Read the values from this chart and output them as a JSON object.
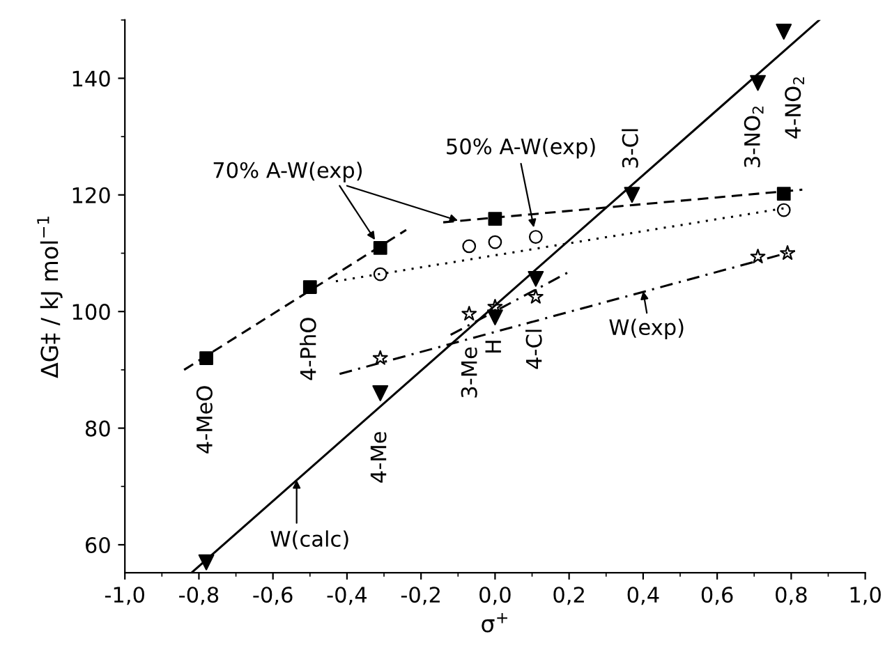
{
  "chart_data": {
    "type": "scatter",
    "xlabel": "σ$^{+}$",
    "ylabel": "ΔG‡ / kJ mol$^{−1}$",
    "xlim": [
      -1.0,
      1.0
    ],
    "ylim": [
      55.2,
      150
    ],
    "xticks": [
      {
        "value": -1.0,
        "label": "-1,0"
      },
      {
        "value": -0.8,
        "label": "-0,8"
      },
      {
        "value": -0.6,
        "label": "-0,6"
      },
      {
        "value": -0.4,
        "label": "-0,4"
      },
      {
        "value": -0.2,
        "label": "-0,2"
      },
      {
        "value": 0.0,
        "label": "0,0"
      },
      {
        "value": 0.2,
        "label": "0,2"
      },
      {
        "value": 0.4,
        "label": "0,4"
      },
      {
        "value": 0.6,
        "label": "0,6"
      },
      {
        "value": 0.8,
        "label": "0,8"
      },
      {
        "value": 1.0,
        "label": "1,0"
      }
    ],
    "yticks": [
      60,
      80,
      100,
      120,
      140
    ],
    "grid": false,
    "legend": false,
    "series": [
      {
        "marker": "triangle",
        "color": "#000000",
        "x": [
          -0.78,
          -0.31,
          0.0,
          0.11,
          0.37,
          0.71,
          0.78
        ],
        "values": [
          57,
          86,
          99,
          105.6,
          120,
          139.2,
          148
        ]
      },
      {
        "marker": "square",
        "color": "#000000",
        "x": [
          -0.78,
          -0.5,
          -0.31,
          0.0,
          0.78
        ],
        "values": [
          92,
          104.2,
          110.9,
          115.9,
          120.2
        ]
      },
      {
        "marker": "circle",
        "color": "#000000",
        "x": [
          -0.31,
          -0.07,
          0.0,
          0.11,
          0.78
        ],
        "values": [
          106.4,
          111.2,
          111.9,
          112.8,
          117.4
        ]
      },
      {
        "marker": "star",
        "color": "#000000",
        "x": [
          -0.31,
          -0.07,
          0.0,
          0.11,
          0.71,
          0.79
        ],
        "values": [
          92,
          99.6,
          100.8,
          102.5,
          109.4,
          110
        ]
      },
      {
        "type": "line",
        "line_style": "solid",
        "color": "#000000",
        "x": [
          -0.82,
          0.876
        ],
        "values": [
          55.2,
          150
        ]
      },
      {
        "type": "line",
        "line_style": "dashed",
        "color": "#000000",
        "x": [
          -0.84,
          -0.24
        ],
        "values": [
          90,
          114
        ]
      },
      {
        "type": "line",
        "line_style": "dashed",
        "color": "#000000",
        "x": [
          -0.14,
          0.83
        ],
        "values": [
          115.3,
          120.9
        ]
      },
      {
        "type": "line",
        "line_style": "dotted",
        "color": "#000000",
        "x": [
          -0.43,
          0.79
        ],
        "values": [
          105.2,
          117.8
        ]
      },
      {
        "type": "line",
        "line_style": "dashdot",
        "color": "#000000",
        "x": [
          -0.42,
          0.81
        ],
        "values": [
          89.3,
          110.4
        ]
      },
      {
        "type": "line",
        "line_style": "dashdot",
        "color": "#000000",
        "x": [
          -0.12,
          0.2
        ],
        "values": [
          96,
          106.8
        ]
      }
    ],
    "annotations": [
      {
        "text": "70% A-W(exp)",
        "x": -0.31,
        "y": 110.9
      },
      {
        "text": "50% A-W(exp)",
        "x": 0.11,
        "y": 112.8
      },
      {
        "text": "W(exp)",
        "x": 0.4,
        "y": 103.5
      },
      {
        "text": "W(calc)",
        "x": -0.536,
        "y": 71.1
      },
      "4-MeO",
      "4-PhO",
      "4-Me",
      "3-Me",
      "H",
      "4-Cl",
      "3-Cl",
      "3-NO$_{2}$",
      "4-NO$_{2}$"
    ]
  }
}
